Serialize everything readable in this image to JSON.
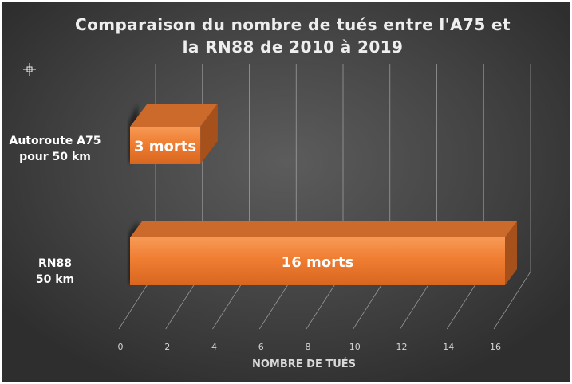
{
  "chart_data": {
    "type": "bar",
    "orientation": "horizontal",
    "title_lines": [
      "Comparaison du nombre de tués entre l'A75 et",
      "la RN88 de 2010 à 2019"
    ],
    "categories": [
      [
        "Autoroute A75",
        "pour 50 km"
      ],
      [
        "RN88",
        "50 km"
      ]
    ],
    "values": [
      3,
      16
    ],
    "data_labels": [
      "3 morts",
      "16 morts"
    ],
    "xlabel": "NOMBRE DE TUÉS",
    "xlim": [
      0,
      16
    ],
    "xticks": [
      "0",
      "2",
      "4",
      "6",
      "8",
      "10",
      "12",
      "14",
      "16"
    ],
    "grid": true,
    "style_3d": true,
    "bar_color": "#ee7a2e",
    "background_color": "#474747"
  }
}
